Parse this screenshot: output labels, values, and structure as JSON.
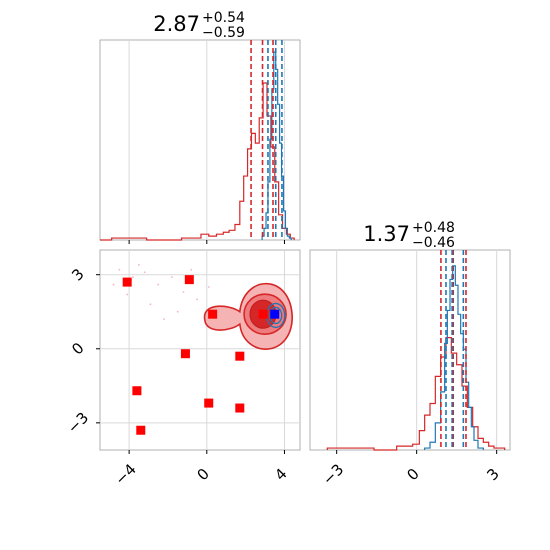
{
  "chart_data": [
    {
      "type": "histogram",
      "panel": "marginal-param-1",
      "title_value": "2.87",
      "title_plus": "+0.54",
      "title_minus": "−0.59",
      "xlim": [
        -5.5,
        4.8
      ],
      "xticks": [
        -4,
        0,
        4
      ],
      "grid": true,
      "series": [
        {
          "color": "#d62728",
          "bin_centers": [
            -5.2,
            -4.6,
            -4.0,
            -3.4,
            -2.8,
            -2.2,
            -1.6,
            -1.0,
            -0.5,
            -0.1,
            0.3,
            0.7,
            1.0,
            1.3,
            1.6,
            1.8,
            2.0,
            2.2,
            2.4,
            2.6,
            2.8,
            3.0,
            3.2,
            3.4,
            3.6,
            3.8,
            4.0,
            4.2,
            4.4
          ],
          "heights": [
            0.0,
            0.01,
            0.01,
            0.01,
            0.0,
            0.0,
            0.0,
            0.01,
            0.01,
            0.03,
            0.02,
            0.03,
            0.04,
            0.05,
            0.08,
            0.2,
            0.33,
            0.47,
            0.55,
            0.5,
            0.63,
            0.81,
            0.64,
            0.48,
            0.3,
            0.13,
            0.06,
            0.03,
            0.01
          ],
          "quantiles": [
            2.28,
            2.87,
            3.41
          ]
        },
        {
          "color": "#1f77b4",
          "bin_centers": [
            2.9,
            3.0,
            3.1,
            3.2,
            3.3,
            3.4,
            3.5,
            3.6,
            3.7,
            3.8,
            3.9,
            4.0,
            4.1,
            4.2,
            4.3
          ],
          "heights": [
            0.02,
            0.06,
            0.14,
            0.3,
            0.52,
            0.78,
            0.97,
            0.88,
            0.7,
            0.5,
            0.33,
            0.15,
            0.06,
            0.02,
            0.01
          ],
          "quantiles": [
            3.15,
            3.55,
            3.87
          ]
        }
      ]
    },
    {
      "type": "histogram",
      "panel": "marginal-param-2",
      "title_value": "1.37",
      "title_plus": "+0.48",
      "title_minus": "−0.46",
      "xlim": [
        -4.0,
        3.5
      ],
      "xticks": [
        -3,
        0,
        3
      ],
      "grid": true,
      "series": [
        {
          "color": "#d62728",
          "bin_centers": [
            -2.9,
            -2.0,
            -1.2,
            -0.3,
            0.0,
            0.2,
            0.4,
            0.6,
            0.8,
            1.0,
            1.2,
            1.4,
            1.6,
            1.8,
            2.0,
            2.2,
            2.4,
            2.6,
            2.8,
            3.0,
            3.2
          ],
          "heights": [
            0.01,
            0.01,
            0.0,
            0.02,
            0.03,
            0.1,
            0.18,
            0.24,
            0.38,
            0.48,
            0.58,
            0.5,
            0.44,
            0.33,
            0.22,
            0.12,
            0.06,
            0.04,
            0.02,
            0.01,
            0.01
          ],
          "quantiles": [
            0.91,
            1.37,
            1.85
          ]
        },
        {
          "color": "#1f77b4",
          "bin_centers": [
            0.4,
            0.6,
            0.8,
            1.0,
            1.1,
            1.2,
            1.3,
            1.4,
            1.5,
            1.6,
            1.7,
            1.8,
            1.9,
            2.0,
            2.1,
            2.2,
            2.4
          ],
          "heights": [
            0.01,
            0.04,
            0.14,
            0.3,
            0.55,
            0.72,
            0.88,
            0.95,
            0.85,
            0.7,
            0.6,
            0.52,
            0.35,
            0.22,
            0.12,
            0.05,
            0.01
          ],
          "quantiles": [
            1.1,
            1.33,
            1.75
          ]
        }
      ]
    },
    {
      "type": "scatter",
      "panel": "joint-param-1-param-2",
      "xlim": [
        -5.5,
        4.8
      ],
      "ylim": [
        -4.1,
        4.0
      ],
      "xticks": [
        -4,
        0,
        4
      ],
      "yticks": [
        -3,
        0,
        3
      ],
      "grid": true,
      "red_markers": [
        {
          "x": -4.1,
          "y": 2.7
        },
        {
          "x": -0.9,
          "y": 2.8
        },
        {
          "x": 0.3,
          "y": 1.4
        },
        {
          "x": -1.1,
          "y": -0.2
        },
        {
          "x": 1.7,
          "y": -0.3
        },
        {
          "x": -3.6,
          "y": -1.7
        },
        {
          "x": 0.1,
          "y": -2.2
        },
        {
          "x": 1.7,
          "y": -2.4
        },
        {
          "x": -3.4,
          "y": -3.3
        },
        {
          "x": 2.9,
          "y": 1.4
        }
      ],
      "blue_marker": {
        "x": 3.5,
        "y": 1.4
      },
      "contour_color": "#d62728",
      "blue_contour_color": "#1f77b4"
    }
  ]
}
